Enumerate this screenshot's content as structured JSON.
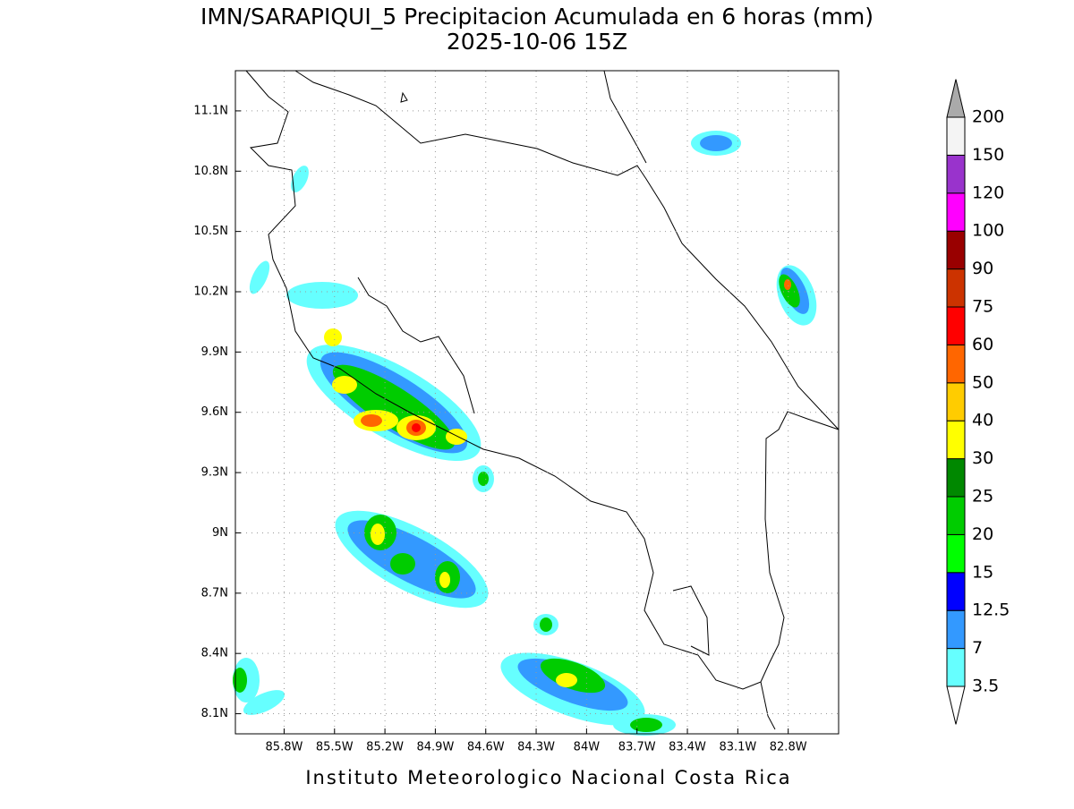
{
  "title": "IMN/SARAPIQUI_5 Precipitacion Acumulada en 6 horas (mm)",
  "subtitle": "2025-10-06 15Z",
  "map": {
    "lonlim": [
      -86.09,
      -82.5
    ],
    "latlim": [
      8.0,
      11.3
    ],
    "lon_ticks": [
      {
        "value": -85.8,
        "label": "85.8W"
      },
      {
        "value": -85.5,
        "label": "85.5W"
      },
      {
        "value": -85.2,
        "label": "85.2W"
      },
      {
        "value": -84.9,
        "label": "84.9W"
      },
      {
        "value": -84.6,
        "label": "84.6W"
      },
      {
        "value": -84.3,
        "label": "84.3W"
      },
      {
        "value": -84,
        "label": "84W"
      },
      {
        "value": -83.7,
        "label": "83.7W"
      },
      {
        "value": -83.4,
        "label": "83.4W"
      },
      {
        "value": -83.1,
        "label": "83.1W"
      },
      {
        "value": -82.8,
        "label": "82.8W"
      }
    ],
    "lat_ticks": [
      {
        "value": 11.1,
        "label": "11.1N"
      },
      {
        "value": 10.8,
        "label": "10.8N"
      },
      {
        "value": 10.5,
        "label": "10.5N"
      },
      {
        "value": 10.2,
        "label": "10.2N"
      },
      {
        "value": 9.9,
        "label": "9.9N"
      },
      {
        "value": 9.6,
        "label": "9.6N"
      },
      {
        "value": 9.3,
        "label": "9.3N"
      },
      {
        "value": 9,
        "label": "9N"
      },
      {
        "value": 8.7,
        "label": "8.7N"
      },
      {
        "value": 8.4,
        "label": "8.4N"
      },
      {
        "value": 8.1,
        "label": "8.1N"
      }
    ]
  },
  "colorbar": {
    "levels": [
      3.5,
      7,
      12.5,
      15,
      20,
      25,
      30,
      40,
      50,
      60,
      75,
      90,
      100,
      120,
      150,
      200
    ],
    "colors": [
      "#66ffff",
      "#3399ff",
      "#0000ff",
      "#00ff00",
      "#00cc00",
      "#008800",
      "#ffff00",
      "#ffcc00",
      "#ff6600",
      "#ff0000",
      "#cc3300",
      "#990000",
      "#ff00ff",
      "#9933cc",
      "#f4f4f4"
    ],
    "under_color": "#ffffff",
    "over_color": "#aaaaaa"
  },
  "footer": "Instituto Meteorologico Nacional Costa Rica"
}
